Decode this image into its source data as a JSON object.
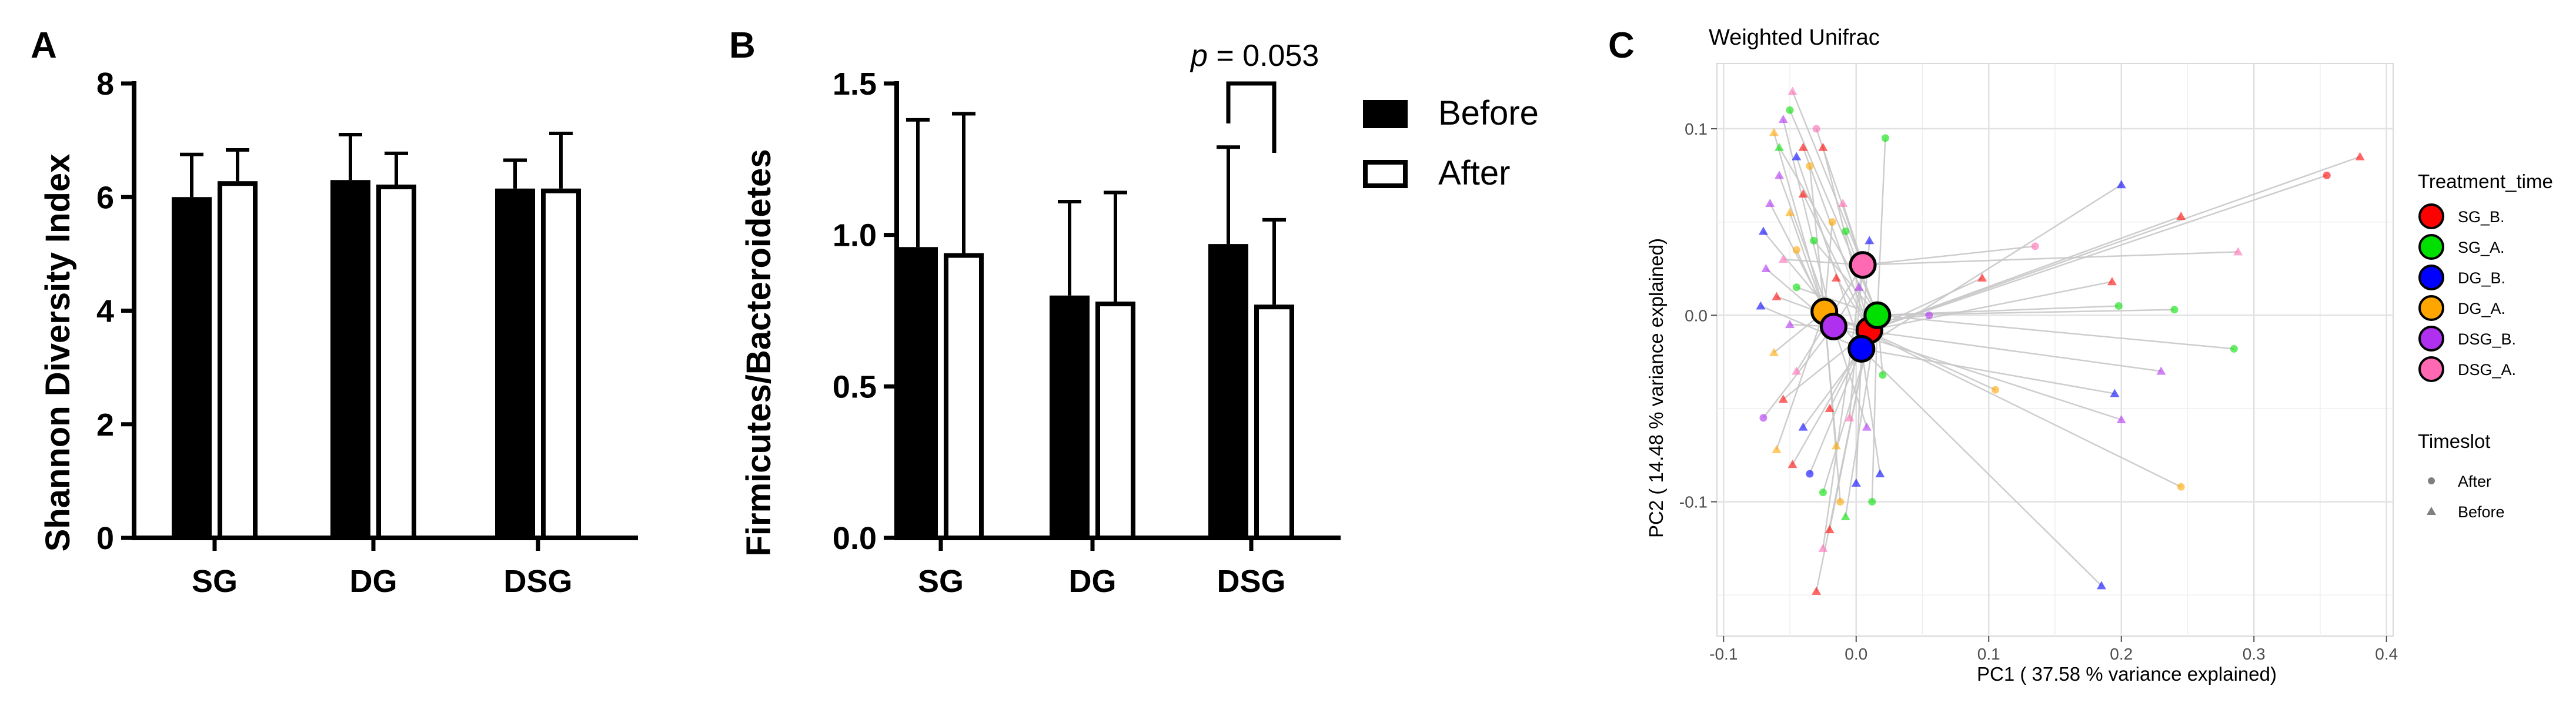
{
  "chart_data": [
    {
      "panel": "A",
      "type": "bar",
      "ylabel": "Shannon Diversity Index",
      "ylim": [
        0,
        8
      ],
      "yticks": [
        0,
        2,
        4,
        6,
        8
      ],
      "categories": [
        "SG",
        "DG",
        "DSG"
      ],
      "series": [
        {
          "name": "Before",
          "values": [
            6.0,
            6.3,
            6.15
          ],
          "errors": [
            0.75,
            0.8,
            0.5
          ]
        },
        {
          "name": "After",
          "values": [
            6.28,
            6.22,
            6.15
          ],
          "errors": [
            0.55,
            0.55,
            0.97
          ]
        }
      ]
    },
    {
      "panel": "B",
      "type": "bar",
      "ylabel": "Firmicutes/Bacteroidetes",
      "ylim": [
        0,
        1.5
      ],
      "yticks": [
        "0.0",
        "0.5",
        "1.0",
        "1.5"
      ],
      "categories": [
        "SG",
        "DG",
        "DSG"
      ],
      "series": [
        {
          "name": "Before",
          "values": [
            0.96,
            0.8,
            0.97
          ],
          "errors": [
            0.42,
            0.31,
            0.32
          ]
        },
        {
          "name": "After",
          "values": [
            0.94,
            0.78,
            0.77
          ],
          "errors": [
            0.46,
            0.36,
            0.28
          ]
        }
      ],
      "annotation": {
        "p_label": "p",
        "p_value": "= 0.053",
        "between": "DSG"
      },
      "legend": [
        "Before",
        "After"
      ]
    },
    {
      "panel": "C",
      "type": "scatter",
      "title": "Weighted Unifrac",
      "xlabel": "PC1 ( 37.58 % variance explained)",
      "ylabel": "PC2 ( 14.48 % variance explained)",
      "xlim": [
        -0.105,
        0.405
      ],
      "ylim": [
        -0.172,
        0.135
      ],
      "xticks": [
        "-0.1",
        "0.0",
        "0.1",
        "0.2",
        "0.3",
        "0.4"
      ],
      "yticks": [
        "0.1",
        "0.0",
        "-0.1"
      ],
      "legend_treatment_title": "Treatment_time",
      "legend_timeslot_title": "Timeslot",
      "groups": [
        {
          "name": "SG_B.",
          "color": "#ff0000",
          "centroid": [
            0.01,
            -0.008
          ]
        },
        {
          "name": "SG_A.",
          "color": "#00e000",
          "centroid": [
            0.016,
            0.0
          ]
        },
        {
          "name": "DG_B.",
          "color": "#0000ff",
          "centroid": [
            0.004,
            -0.018
          ]
        },
        {
          "name": "DG_A.",
          "color": "#ffa500",
          "centroid": [
            -0.024,
            0.002
          ]
        },
        {
          "name": "DSG_B.",
          "color": "#b030f0",
          "centroid": [
            -0.017,
            -0.006
          ]
        },
        {
          "name": "DSG_A.",
          "color": "#ff69b4",
          "centroid": [
            0.005,
            0.027
          ]
        }
      ],
      "timeslots": [
        "After",
        "Before"
      ],
      "points": [
        {
          "x": -0.055,
          "y": 0.105,
          "g": 4,
          "s": 1
        },
        {
          "x": -0.062,
          "y": 0.098,
          "g": 3,
          "s": 1
        },
        {
          "x": -0.048,
          "y": 0.12,
          "g": 5,
          "s": 1
        },
        {
          "x": -0.04,
          "y": 0.09,
          "g": 0,
          "s": 1
        },
        {
          "x": -0.05,
          "y": 0.11,
          "g": 1,
          "s": 0
        },
        {
          "x": -0.045,
          "y": 0.085,
          "g": 2,
          "s": 1
        },
        {
          "x": -0.035,
          "y": 0.08,
          "g": 3,
          "s": 0
        },
        {
          "x": -0.058,
          "y": 0.075,
          "g": 4,
          "s": 1
        },
        {
          "x": -0.03,
          "y": 0.1,
          "g": 5,
          "s": 0
        },
        {
          "x": -0.025,
          "y": 0.09,
          "g": 0,
          "s": 1
        },
        {
          "x": 0.022,
          "y": 0.095,
          "g": 1,
          "s": 0
        },
        {
          "x": -0.065,
          "y": 0.06,
          "g": 4,
          "s": 1
        },
        {
          "x": -0.07,
          "y": 0.045,
          "g": 2,
          "s": 1
        },
        {
          "x": -0.05,
          "y": 0.055,
          "g": 3,
          "s": 1
        },
        {
          "x": -0.04,
          "y": 0.065,
          "g": 0,
          "s": 1
        },
        {
          "x": -0.055,
          "y": 0.03,
          "g": 5,
          "s": 1
        },
        {
          "x": -0.068,
          "y": 0.025,
          "g": 4,
          "s": 1
        },
        {
          "x": -0.045,
          "y": 0.035,
          "g": 3,
          "s": 0
        },
        {
          "x": -0.032,
          "y": 0.04,
          "g": 1,
          "s": 0
        },
        {
          "x": -0.06,
          "y": 0.01,
          "g": 0,
          "s": 1
        },
        {
          "x": -0.072,
          "y": 0.005,
          "g": 2,
          "s": 1
        },
        {
          "x": -0.05,
          "y": -0.005,
          "g": 4,
          "s": 1
        },
        {
          "x": -0.062,
          "y": -0.02,
          "g": 3,
          "s": 1
        },
        {
          "x": -0.045,
          "y": -0.03,
          "g": 5,
          "s": 1
        },
        {
          "x": -0.055,
          "y": -0.045,
          "g": 0,
          "s": 1
        },
        {
          "x": -0.07,
          "y": -0.055,
          "g": 4,
          "s": 0
        },
        {
          "x": -0.04,
          "y": -0.06,
          "g": 2,
          "s": 1
        },
        {
          "x": -0.06,
          "y": -0.072,
          "g": 3,
          "s": 1
        },
        {
          "x": -0.048,
          "y": -0.08,
          "g": 0,
          "s": 1
        },
        {
          "x": -0.035,
          "y": -0.085,
          "g": 2,
          "s": 0
        },
        {
          "x": -0.025,
          "y": -0.095,
          "g": 1,
          "s": 0
        },
        {
          "x": -0.012,
          "y": -0.1,
          "g": 3,
          "s": 0
        },
        {
          "x": -0.02,
          "y": -0.115,
          "g": 0,
          "s": 1
        },
        {
          "x": -0.03,
          "y": -0.148,
          "g": 0,
          "s": 1
        },
        {
          "x": -0.025,
          "y": -0.125,
          "g": 5,
          "s": 1
        },
        {
          "x": -0.008,
          "y": -0.108,
          "g": 1,
          "s": 1
        },
        {
          "x": 0.0,
          "y": -0.09,
          "g": 2,
          "s": 1
        },
        {
          "x": 0.012,
          "y": -0.1,
          "g": 1,
          "s": 0
        },
        {
          "x": 0.018,
          "y": -0.085,
          "g": 2,
          "s": 1
        },
        {
          "x": 0.02,
          "y": -0.032,
          "g": 1,
          "s": 0
        },
        {
          "x": -0.015,
          "y": -0.07,
          "g": 3,
          "s": 1
        },
        {
          "x": -0.005,
          "y": -0.055,
          "g": 5,
          "s": 1
        },
        {
          "x": 0.008,
          "y": -0.06,
          "g": 4,
          "s": 1
        },
        {
          "x": -0.02,
          "y": -0.05,
          "g": 0,
          "s": 1
        },
        {
          "x": -0.01,
          "y": 0.06,
          "g": 5,
          "s": 1
        },
        {
          "x": -0.018,
          "y": 0.05,
          "g": 3,
          "s": 0
        },
        {
          "x": -0.008,
          "y": 0.045,
          "g": 1,
          "s": 0
        },
        {
          "x": 0.01,
          "y": 0.04,
          "g": 2,
          "s": 1
        },
        {
          "x": -0.015,
          "y": 0.02,
          "g": 0,
          "s": 1
        },
        {
          "x": 0.002,
          "y": 0.015,
          "g": 4,
          "s": 1
        },
        {
          "x": 0.2,
          "y": 0.07,
          "g": 2,
          "s": 1
        },
        {
          "x": 0.38,
          "y": 0.085,
          "g": 0,
          "s": 1
        },
        {
          "x": 0.355,
          "y": 0.075,
          "g": 0,
          "s": 0
        },
        {
          "x": 0.245,
          "y": 0.053,
          "g": 0,
          "s": 1
        },
        {
          "x": 0.135,
          "y": 0.037,
          "g": 5,
          "s": 0
        },
        {
          "x": 0.288,
          "y": 0.034,
          "g": 5,
          "s": 1
        },
        {
          "x": 0.193,
          "y": 0.018,
          "g": 0,
          "s": 1
        },
        {
          "x": 0.198,
          "y": 0.005,
          "g": 1,
          "s": 0
        },
        {
          "x": 0.24,
          "y": 0.003,
          "g": 1,
          "s": 0
        },
        {
          "x": 0.285,
          "y": -0.018,
          "g": 1,
          "s": 0
        },
        {
          "x": 0.23,
          "y": -0.03,
          "g": 4,
          "s": 1
        },
        {
          "x": 0.195,
          "y": -0.042,
          "g": 2,
          "s": 1
        },
        {
          "x": 0.2,
          "y": -0.056,
          "g": 4,
          "s": 1
        },
        {
          "x": 0.245,
          "y": -0.092,
          "g": 3,
          "s": 0
        },
        {
          "x": 0.185,
          "y": -0.145,
          "g": 2,
          "s": 1
        },
        {
          "x": 0.105,
          "y": -0.04,
          "g": 3,
          "s": 0
        },
        {
          "x": 0.095,
          "y": 0.02,
          "g": 0,
          "s": 1
        },
        {
          "x": 0.055,
          "y": 0.0,
          "g": 4,
          "s": 0
        },
        {
          "x": -0.058,
          "y": 0.09,
          "g": 1,
          "s": 1
        },
        {
          "x": -0.045,
          "y": 0.015,
          "g": 1,
          "s": 0
        }
      ]
    }
  ]
}
